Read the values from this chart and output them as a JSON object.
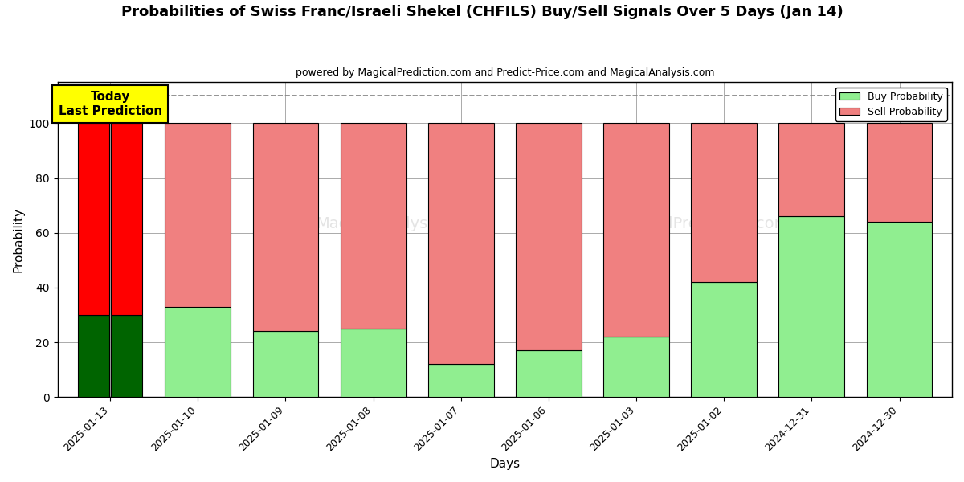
{
  "title": "Probabilities of Swiss Franc/Israeli Shekel (CHFILS) Buy/Sell Signals Over 5 Days (Jan 14)",
  "subtitle": "powered by MagicalPrediction.com and Predict-Price.com and MagicalAnalysis.com",
  "xlabel": "Days",
  "ylabel": "Probability",
  "tick_labels": [
    "2025-01-13",
    "2025-01-10",
    "2025-01-09",
    "2025-01-08",
    "2025-01-07",
    "2025-01-06",
    "2025-01-03",
    "2025-01-02",
    "2024-12-31",
    "2024-12-30"
  ],
  "buy_values": [
    30,
    30,
    33,
    24,
    25,
    12,
    17,
    22,
    42,
    66,
    64
  ],
  "sell_values": [
    70,
    70,
    67,
    76,
    75,
    88,
    83,
    78,
    58,
    34,
    36
  ],
  "buy_colors": [
    "#006400",
    "#006400",
    "#90EE90",
    "#90EE90",
    "#90EE90",
    "#90EE90",
    "#90EE90",
    "#90EE90",
    "#90EE90",
    "#90EE90",
    "#90EE90"
  ],
  "sell_colors": [
    "#FF0000",
    "#FF0000",
    "#F08080",
    "#F08080",
    "#F08080",
    "#F08080",
    "#F08080",
    "#F08080",
    "#F08080",
    "#F08080",
    "#F08080"
  ],
  "today_annotation": "Today\nLast Prediction",
  "today_box_color": "#FFFF00",
  "legend_buy_color": "#90EE90",
  "legend_sell_color": "#F08080",
  "ylim": [
    0,
    115
  ],
  "dashed_line_y": 110,
  "background_color": "#ffffff",
  "grid_color": "#aaaaaa"
}
